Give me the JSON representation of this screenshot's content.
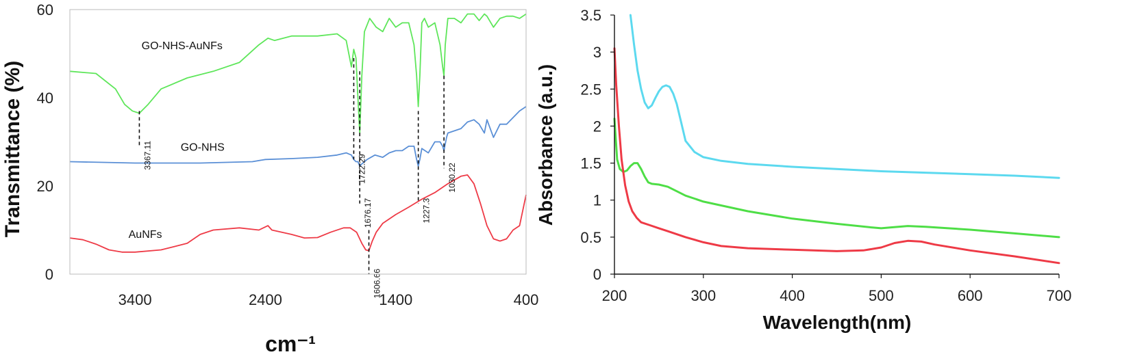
{
  "chart_data": [
    {
      "type": "line",
      "title": "",
      "xlabel": "cm⁻¹",
      "ylabel": "Transmittance (%)",
      "xlim": [
        3900,
        400
      ],
      "ylim": [
        0,
        60
      ],
      "x_ticks": [
        3400,
        2400,
        1400,
        400
      ],
      "y_ticks": [
        0,
        20,
        40,
        60
      ],
      "grid": false,
      "legend": "none",
      "series": [
        {
          "name": "GO-NHS-AuNFs",
          "color": "#5ee65a",
          "label_at": [
            3350,
            51
          ],
          "x": [
            3900,
            3700,
            3550,
            3480,
            3420,
            3367,
            3300,
            3200,
            3000,
            2800,
            2600,
            2450,
            2380,
            2330,
            2200,
            2000,
            1850,
            1780,
            1740,
            1722,
            1705,
            1690,
            1676,
            1660,
            1640,
            1600,
            1550,
            1500,
            1450,
            1400,
            1350,
            1300,
            1260,
            1240,
            1227,
            1215,
            1200,
            1180,
            1150,
            1100,
            1060,
            1040,
            1030,
            1020,
            1000,
            950,
            900,
            850,
            800,
            760,
            720,
            700,
            650,
            600,
            550,
            500,
            450,
            400
          ],
          "y": [
            46,
            45.5,
            42,
            38.5,
            37,
            36.5,
            38.5,
            42,
            44.5,
            46,
            48,
            52,
            53.5,
            53,
            54,
            54,
            54.5,
            53,
            47,
            51,
            49,
            40,
            32,
            45,
            55,
            58,
            56,
            55,
            58,
            56,
            57,
            57,
            52,
            45,
            38,
            45,
            57,
            58,
            56,
            57,
            52,
            47,
            45,
            52,
            58,
            58,
            57,
            59,
            59,
            57.5,
            59,
            58.5,
            56,
            58,
            58.5,
            58.5,
            58,
            59
          ]
        },
        {
          "name": "GO-NHS",
          "color": "#5a8fd6",
          "label_at": [
            3050,
            28
          ],
          "x": [
            3900,
            3400,
            2900,
            2500,
            2400,
            2200,
            2000,
            1850,
            1780,
            1740,
            1722,
            1705,
            1690,
            1676,
            1660,
            1620,
            1560,
            1500,
            1450,
            1400,
            1350,
            1300,
            1260,
            1240,
            1227,
            1215,
            1200,
            1150,
            1100,
            1060,
            1040,
            1030,
            1010,
            1000,
            950,
            900,
            850,
            800,
            760,
            720,
            700,
            650,
            600,
            550,
            500,
            450,
            400
          ],
          "y": [
            25.5,
            25.2,
            25.2,
            25.5,
            26,
            26.2,
            26.5,
            27,
            27.5,
            27,
            26,
            25.5,
            25.5,
            24.5,
            25,
            26,
            27,
            26.5,
            27.5,
            28,
            28,
            29,
            29,
            26,
            24.5,
            26,
            28.5,
            27.5,
            30,
            30,
            29,
            28,
            31,
            32,
            32.5,
            33,
            34.5,
            35,
            34,
            32,
            35,
            31,
            34,
            34,
            35.5,
            37,
            38
          ]
        },
        {
          "name": "AuNFs",
          "color": "#ee3a46",
          "label_at": [
            3450,
            8.2
          ],
          "x": [
            3900,
            3800,
            3700,
            3600,
            3500,
            3400,
            3200,
            3000,
            2900,
            2800,
            2600,
            2450,
            2380,
            2350,
            2200,
            2100,
            2000,
            1900,
            1800,
            1750,
            1700,
            1660,
            1630,
            1606,
            1580,
            1550,
            1500,
            1400,
            1300,
            1200,
            1100,
            1000,
            900,
            850,
            800,
            750,
            700,
            650,
            600,
            550,
            500,
            450,
            400
          ],
          "y": [
            8.2,
            7.8,
            6.8,
            5.5,
            5,
            5,
            5.5,
            7,
            9,
            10,
            10.5,
            10,
            11,
            10,
            9,
            8.2,
            8.3,
            9.5,
            10.5,
            10.5,
            9.5,
            7,
            5.5,
            5.3,
            7.5,
            9.5,
            11.5,
            13.5,
            15.2,
            17,
            18.5,
            20.5,
            22.2,
            22.5,
            20.5,
            16,
            11,
            8,
            7.5,
            8,
            10,
            11,
            18
          ]
        }
      ],
      "annotations": [
        {
          "label": "3367.11",
          "x": 3367,
          "y_top": 37,
          "y_bottom": 29
        },
        {
          "label": "1722.29",
          "x": 1722,
          "y_top": 49,
          "y_bottom": 26
        },
        {
          "label": "1676.17",
          "x": 1676,
          "y_top": 46,
          "y_bottom": 16
        },
        {
          "label": "1227.3",
          "x": 1227,
          "y_top": 37,
          "y_bottom": 16
        },
        {
          "label": "1030.22",
          "x": 1030,
          "y_top": 45,
          "y_bottom": 24
        },
        {
          "label": "1606.66",
          "x": 1606,
          "y_top": 10,
          "y_bottom": 0
        }
      ]
    },
    {
      "type": "line",
      "title": "",
      "xlabel": "Wavelength(nm)",
      "ylabel": "Absorbance (a.u.)",
      "xlim": [
        200,
        700
      ],
      "ylim": [
        0,
        3.5
      ],
      "x_ticks": [
        200,
        300,
        400,
        500,
        600,
        700
      ],
      "y_ticks": [
        0,
        0.5,
        1,
        1.5,
        2,
        2.5,
        3,
        3.5
      ],
      "y_tick_labels": [
        "0",
        "0.5",
        "1",
        "1.5",
        "2",
        "2.5",
        "3",
        "3.5"
      ],
      "grid": false,
      "legend": "none",
      "series": [
        {
          "color": "#5cd9ef",
          "x": [
            218,
            222,
            226,
            230,
            234,
            238,
            242,
            246,
            250,
            254,
            258,
            262,
            266,
            270,
            275,
            280,
            290,
            300,
            320,
            350,
            400,
            450,
            500,
            550,
            600,
            650,
            700
          ],
          "y": [
            3.5,
            3.1,
            2.75,
            2.5,
            2.32,
            2.24,
            2.28,
            2.38,
            2.47,
            2.53,
            2.55,
            2.53,
            2.44,
            2.3,
            2.05,
            1.8,
            1.65,
            1.58,
            1.53,
            1.49,
            1.45,
            1.42,
            1.39,
            1.37,
            1.35,
            1.33,
            1.3
          ]
        },
        {
          "color": "#4ede46",
          "x": [
            200,
            203,
            206,
            210,
            214,
            218,
            222,
            226,
            230,
            234,
            238,
            242,
            250,
            260,
            270,
            280,
            290,
            300,
            350,
            400,
            450,
            490,
            500,
            510,
            530,
            550,
            600,
            650,
            700
          ],
          "y": [
            2.1,
            1.55,
            1.42,
            1.38,
            1.4,
            1.46,
            1.5,
            1.5,
            1.42,
            1.32,
            1.24,
            1.22,
            1.21,
            1.18,
            1.12,
            1.06,
            1.02,
            0.98,
            0.85,
            0.75,
            0.68,
            0.63,
            0.62,
            0.63,
            0.65,
            0.64,
            0.6,
            0.55,
            0.5
          ]
        },
        {
          "color": "#ee3a46",
          "x": [
            200,
            202,
            205,
            208,
            212,
            216,
            220,
            225,
            230,
            240,
            250,
            260,
            280,
            300,
            320,
            350,
            400,
            450,
            480,
            500,
            515,
            530,
            545,
            560,
            600,
            650,
            700
          ],
          "y": [
            3.05,
            2.55,
            2.0,
            1.55,
            1.2,
            0.98,
            0.85,
            0.76,
            0.7,
            0.66,
            0.62,
            0.58,
            0.5,
            0.43,
            0.38,
            0.35,
            0.33,
            0.31,
            0.32,
            0.36,
            0.42,
            0.45,
            0.44,
            0.4,
            0.32,
            0.24,
            0.15
          ]
        }
      ]
    }
  ]
}
